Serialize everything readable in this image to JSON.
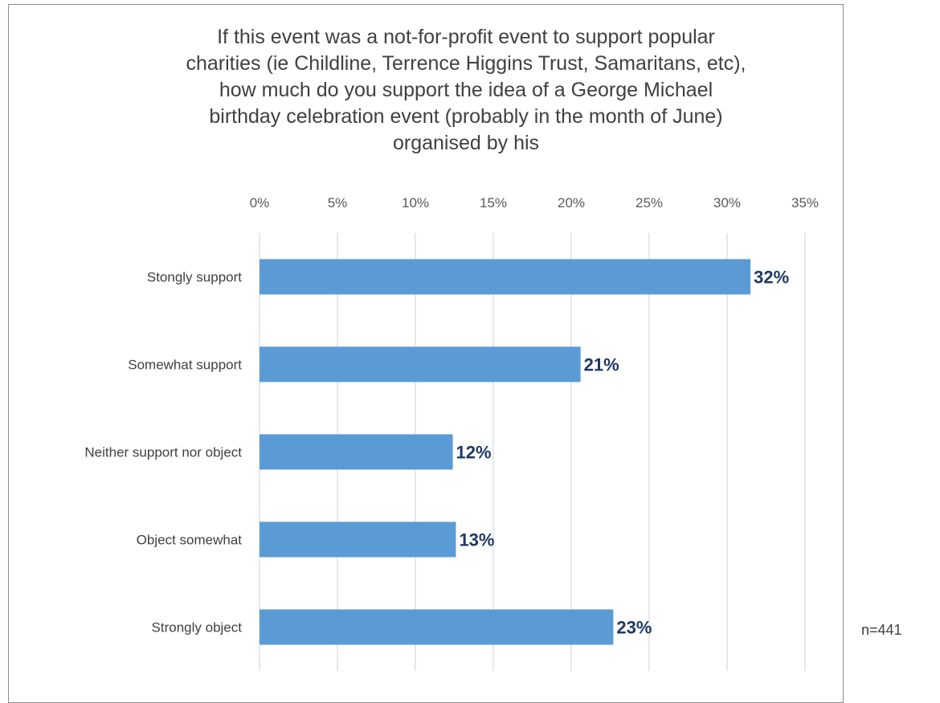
{
  "chart_data": {
    "type": "bar",
    "orientation": "horizontal",
    "title_lines": [
      "If this event was a not-for-profit event to support popular",
      "charities (ie Childline, Terrence Higgins Trust, Samaritans, etc),",
      "how much do you support the idea of a George Michael",
      "birthday celebration event (probably in the month of June)",
      "organised by his"
    ],
    "categories": [
      "Stongly support",
      "Somewhat support",
      "Neither support nor object",
      "Object somewhat",
      "Strongly object"
    ],
    "values": [
      31.5,
      20.6,
      12.4,
      12.6,
      22.7
    ],
    "data_labels": [
      "32%",
      "21%",
      "12%",
      "13%",
      "23%"
    ],
    "xlim": [
      0,
      35
    ],
    "xticks": [
      0,
      5,
      10,
      15,
      20,
      25,
      30,
      35
    ],
    "xtick_labels": [
      "0%",
      "5%",
      "10%",
      "15%",
      "20%",
      "25%",
      "30%",
      "35%"
    ],
    "x_axis_position": "top",
    "grid": true,
    "legend": "none",
    "bar_color": "#5b9bd5",
    "label_color": "#1f3864",
    "grid_color": "#d9d9d9"
  },
  "note": "n=441"
}
